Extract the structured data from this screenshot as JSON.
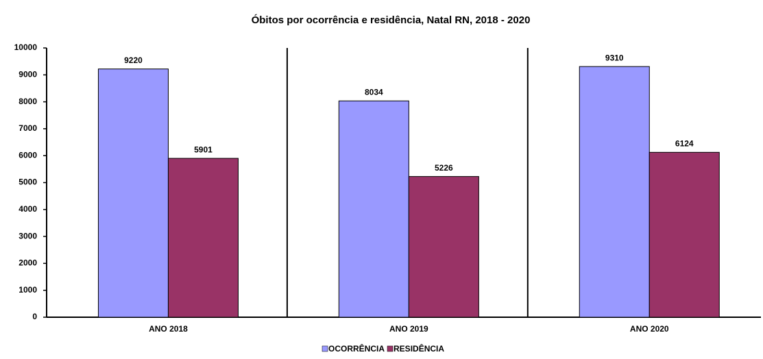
{
  "chart_data": {
    "type": "bar",
    "title": "Óbitos por ocorrência e residência, Natal RN, 2018 - 2020",
    "categories": [
      "ANO 2018",
      "ANO 2019",
      "ANO 2020"
    ],
    "series": [
      {
        "name": "OCORRÊNCIA",
        "color": "#9999ff",
        "values": [
          9220,
          8034,
          9310
        ]
      },
      {
        "name": "RESIDÊNCIA",
        "color": "#993366",
        "values": [
          5901,
          5226,
          6124
        ]
      }
    ],
    "ylim": [
      0,
      10000
    ],
    "yticks": [
      0,
      1000,
      2000,
      3000,
      4000,
      5000,
      6000,
      7000,
      8000,
      9000,
      10000
    ],
    "legend": "bottom"
  }
}
